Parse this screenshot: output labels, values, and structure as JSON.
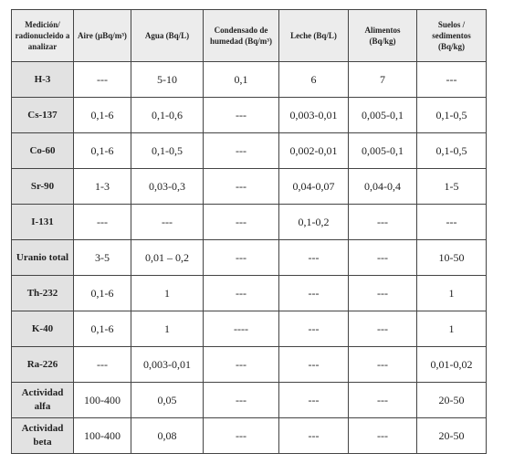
{
  "table": {
    "header": [
      "Medición/ radionucleido a analizar",
      "Aire (μBq/m³)",
      "Agua (Bq/L)",
      "Condensado de humedad (Bq/m³)",
      "Leche (Bq/L)",
      "Alimentos (Bq/kg)",
      "Suelos / sedimentos (Bq/kg)"
    ],
    "rows": [
      [
        "H-3",
        "---",
        "5-10",
        "0,1",
        "6",
        "7",
        "---"
      ],
      [
        "Cs-137",
        "0,1-6",
        "0,1-0,6",
        "---",
        "0,003-0,01",
        "0,005-0,1",
        "0,1-0,5"
      ],
      [
        "Co-60",
        "0,1-6",
        "0,1-0,5",
        "---",
        "0,002-0,01",
        "0,005-0,1",
        "0,1-0,5"
      ],
      [
        "Sr-90",
        "1-3",
        "0,03-0,3",
        "---",
        "0,04-0,07",
        "0,04-0,4",
        "1-5"
      ],
      [
        "I-131",
        "---",
        "---",
        "---",
        "0,1-0,2",
        "---",
        "---"
      ],
      [
        "Uranio total",
        "3-5",
        "0,01 – 0,2",
        "---",
        "---",
        "---",
        "10-50"
      ],
      [
        "Th-232",
        "0,1-6",
        "1",
        "---",
        "---",
        "---",
        "1"
      ],
      [
        "K-40",
        "0,1-6",
        "1",
        "----",
        "---",
        "---",
        "1"
      ],
      [
        "Ra-226",
        "---",
        "0,003-0,01",
        "---",
        "---",
        "---",
        "0,01-0,02"
      ],
      [
        "Actividad alfa",
        "100-400",
        "0,05",
        "---",
        "---",
        "---",
        "20-50"
      ],
      [
        "Actividad beta",
        "100-400",
        "0,08",
        "---",
        "---",
        "---",
        "20-50"
      ]
    ]
  }
}
